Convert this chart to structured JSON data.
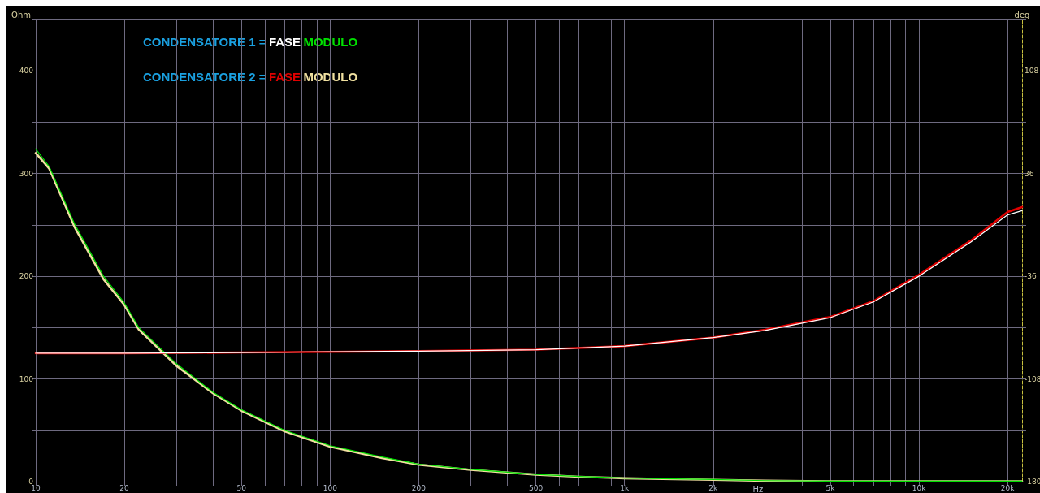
{
  "chart_data": {
    "type": "line",
    "xlabel": "Hz",
    "ylabel": "Ohm",
    "y2label": "deg",
    "annotations": [
      "CONDENSATORE 1 =",
      "CONDENSATORE 2 ="
    ],
    "log": "x",
    "grid": true,
    "xlim": [
      10,
      22400
    ],
    "xticks": [
      10,
      20,
      {
        "value": 30,
        "label": null
      },
      {
        "value": 40,
        "label": null
      },
      50,
      {
        "value": 60,
        "label": null
      },
      {
        "value": 70,
        "label": null
      },
      {
        "value": 80,
        "label": null
      },
      {
        "value": 90,
        "label": null
      },
      100,
      200,
      {
        "value": 300,
        "label": null
      },
      {
        "value": 400,
        "label": null
      },
      500,
      {
        "value": 600,
        "label": null
      },
      {
        "value": 700,
        "label": null
      },
      {
        "value": 800,
        "label": null
      },
      {
        "value": 900,
        "label": null
      },
      {
        "value": 1000,
        "label": "1k"
      },
      {
        "value": 2000,
        "label": "2k"
      },
      {
        "value": 3000,
        "label": null
      },
      {
        "value": 4000,
        "label": null
      },
      {
        "value": 5000,
        "label": "5k"
      },
      {
        "value": 6000,
        "label": null
      },
      {
        "value": 7000,
        "label": null
      },
      {
        "value": 8000,
        "label": null
      },
      {
        "value": 9000,
        "label": null
      },
      {
        "value": 10000,
        "label": "10k"
      },
      {
        "value": 20000,
        "label": "20k"
      }
    ],
    "ylim": [
      0,
      450
    ],
    "yticks": [
      0,
      {
        "value": 50,
        "label": null
      },
      100,
      {
        "value": 150,
        "label": null
      },
      200,
      {
        "value": 250,
        "label": null
      },
      300,
      {
        "value": 350,
        "label": null
      },
      400,
      {
        "value": 450,
        "label": null
      }
    ],
    "y2lim": [
      -180,
      144
    ],
    "y2ticks": [
      -180,
      {
        "value": -144,
        "label": null
      },
      -108,
      {
        "value": -72,
        "label": null
      },
      -36,
      {
        "value": 0,
        "label": null
      },
      36,
      {
        "value": 72,
        "label": null
      },
      108,
      {
        "value": 144,
        "label": null
      }
    ],
    "series": [
      {
        "name": "FASE",
        "color": "#ffffff",
        "axis": "y2",
        "x": [
          10,
          20,
          50,
          100,
          200,
          500,
          1000,
          2000,
          3000,
          5000,
          7000,
          10000,
          15000,
          20000,
          22400
        ],
        "values": [
          -90,
          -90,
          -89.5,
          -89,
          -88.5,
          -87.5,
          -85,
          -79,
          -74,
          -65,
          -54,
          -36,
          -12,
          7,
          10
        ]
      },
      {
        "name": "MODULO",
        "color": "#00e000",
        "x": [
          10,
          11.1,
          13.6,
          17,
          20,
          22.4,
          30,
          40,
          50,
          70,
          100,
          150,
          200,
          300,
          500,
          700,
          1000,
          2000,
          3000,
          5000,
          10000,
          22400
        ],
        "values": [
          324,
          307,
          250,
          200,
          174,
          150,
          115,
          87,
          70,
          50,
          35,
          24,
          17,
          12,
          7,
          5,
          3.5,
          2,
          1,
          0.5,
          0.5,
          0.5
        ]
      },
      {
        "name": "FASE",
        "color": "#e00000",
        "axis": "y2",
        "x": [
          10,
          20,
          50,
          100,
          200,
          500,
          1000,
          2000,
          3000,
          5000,
          7000,
          10000,
          15000,
          20000,
          22400
        ],
        "values": [
          -90,
          -90,
          -89.5,
          -89,
          -88.5,
          -87.5,
          -85,
          -79,
          -73.5,
          -64.5,
          -53.5,
          -35,
          -11,
          9,
          12.5
        ]
      },
      {
        "name": "MODULO",
        "color": "#f0e0a0",
        "x": [
          10,
          11.1,
          13.6,
          17,
          20,
          22.4,
          30,
          40,
          50,
          70,
          100,
          150,
          200,
          300,
          500,
          700,
          1000,
          2000,
          3000,
          5000,
          10000,
          22400
        ],
        "values": [
          320,
          305,
          247,
          197,
          172,
          148,
          113,
          86,
          69,
          49,
          34,
          23,
          16.5,
          11.5,
          6.8,
          4.8,
          3.3,
          1.8,
          0.9,
          0.4,
          0.4,
          0.4
        ]
      }
    ]
  }
}
